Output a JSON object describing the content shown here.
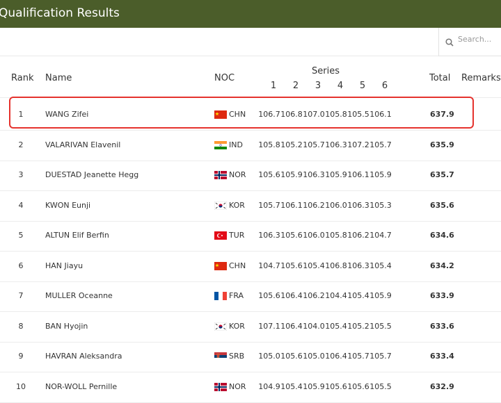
{
  "header": {
    "title": "Qualification Results"
  },
  "search": {
    "placeholder": "Search..."
  },
  "table": {
    "columns": {
      "rank": "Rank",
      "name": "Name",
      "noc": "NOC",
      "series": "Series",
      "series_numbers": [
        "1",
        "2",
        "3",
        "4",
        "5",
        "6"
      ],
      "total": "Total",
      "remarks": "Remarks"
    },
    "rows": [
      {
        "rank": "1",
        "name": "WANG Zifei",
        "noc": "CHN",
        "series": [
          "106.7",
          "106.8",
          "107.0",
          "105.8",
          "105.5",
          "106.1"
        ],
        "total": "637.9"
      },
      {
        "rank": "2",
        "name": "VALARIVAN Elavenil",
        "noc": "IND",
        "series": [
          "105.8",
          "105.2",
          "105.7",
          "106.3",
          "107.2",
          "105.7"
        ],
        "total": "635.9"
      },
      {
        "rank": "3",
        "name": "DUESTAD Jeanette Hegg",
        "noc": "NOR",
        "series": [
          "105.6",
          "105.9",
          "106.3",
          "105.9",
          "106.1",
          "105.9"
        ],
        "total": "635.7"
      },
      {
        "rank": "4",
        "name": "KWON Eunji",
        "noc": "KOR",
        "series": [
          "105.7",
          "106.1",
          "106.2",
          "106.0",
          "106.3",
          "105.3"
        ],
        "total": "635.6"
      },
      {
        "rank": "5",
        "name": "ALTUN Elif Berfin",
        "noc": "TUR",
        "series": [
          "106.3",
          "105.6",
          "106.0",
          "105.8",
          "106.2",
          "104.7"
        ],
        "total": "634.6"
      },
      {
        "rank": "6",
        "name": "HAN Jiayu",
        "noc": "CHN",
        "series": [
          "104.7",
          "105.6",
          "105.4",
          "106.8",
          "106.3",
          "105.4"
        ],
        "total": "634.2"
      },
      {
        "rank": "7",
        "name": "MULLER Oceanne",
        "noc": "FRA",
        "series": [
          "105.6",
          "106.4",
          "106.2",
          "104.4",
          "105.4",
          "105.9"
        ],
        "total": "633.9"
      },
      {
        "rank": "8",
        "name": "BAN Hyojin",
        "noc": "KOR",
        "series": [
          "107.1",
          "106.4",
          "104.0",
          "105.4",
          "105.2",
          "105.5"
        ],
        "total": "633.6"
      },
      {
        "rank": "9",
        "name": "HAVRAN Aleksandra",
        "noc": "SRB",
        "series": [
          "105.0",
          "105.6",
          "105.0",
          "106.4",
          "105.7",
          "105.7"
        ],
        "total": "633.4"
      },
      {
        "rank": "10",
        "name": "NOR-WOLL Pernille",
        "noc": "NOR",
        "series": [
          "104.9",
          "105.4",
          "105.9",
          "105.6",
          "105.6",
          "105.5"
        ],
        "total": "632.9"
      }
    ]
  }
}
